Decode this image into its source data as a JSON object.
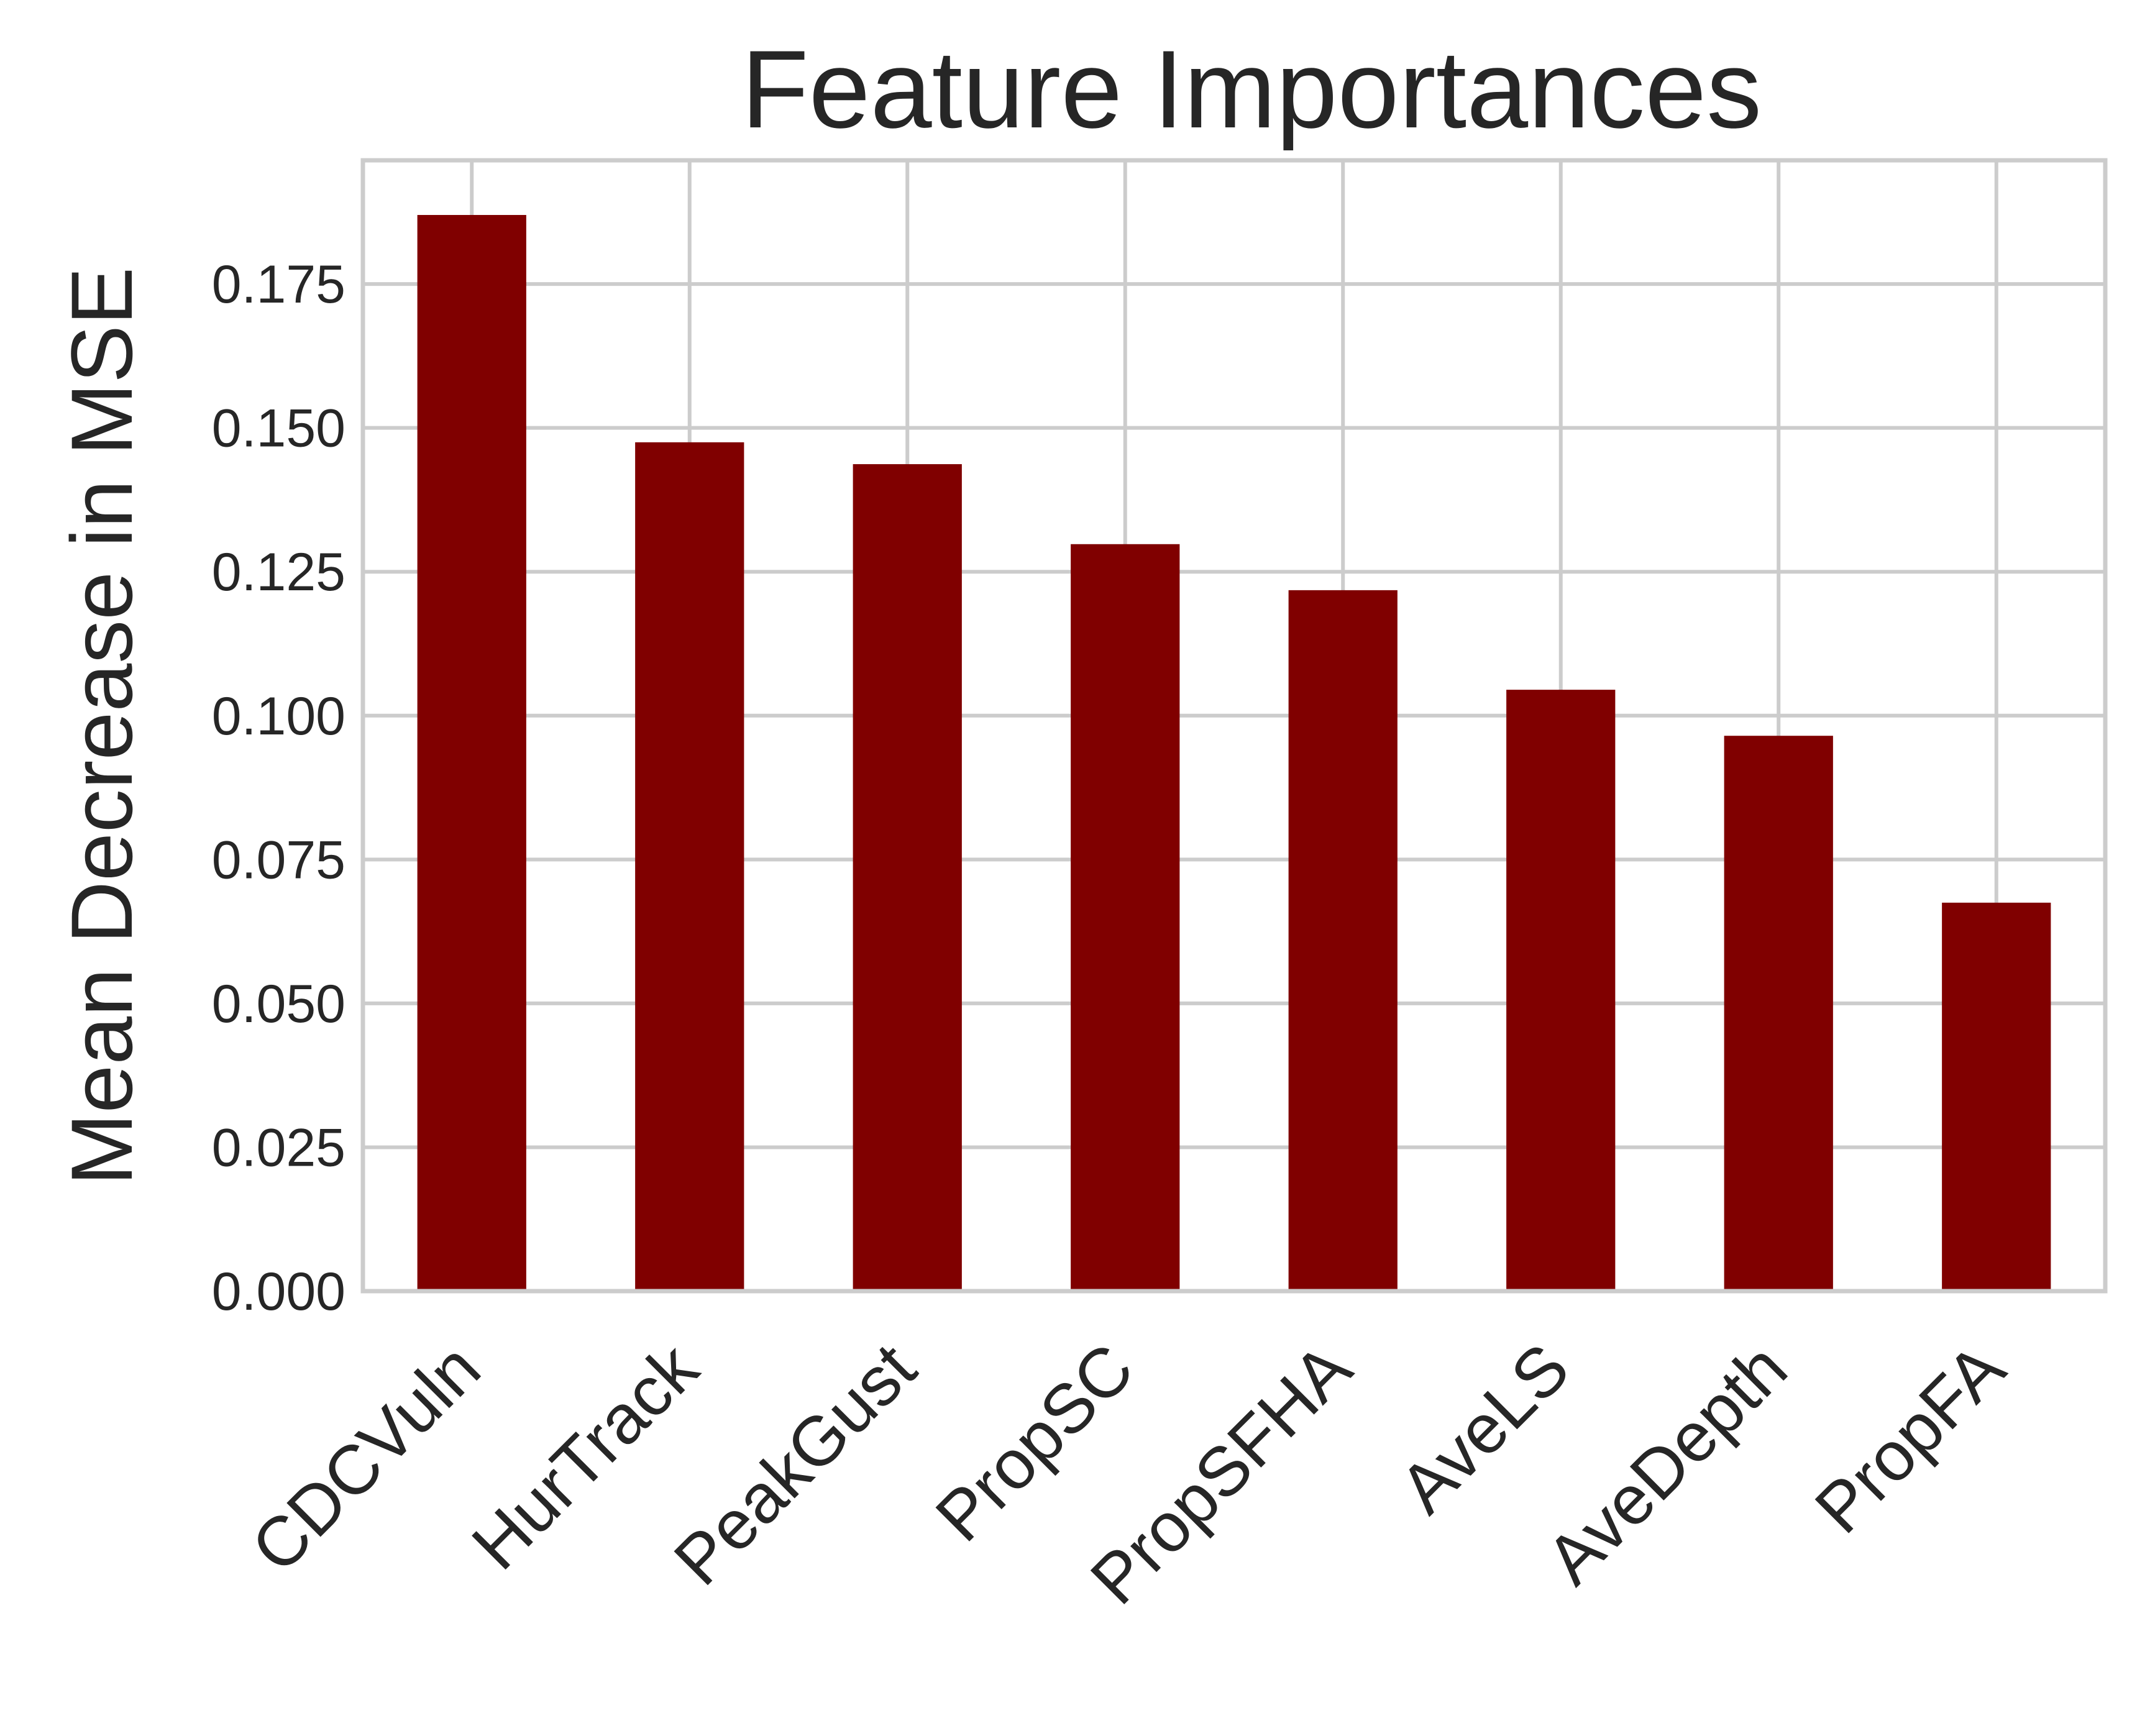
{
  "chart_data": {
    "type": "bar",
    "title": "Feature Importances",
    "xlabel": "",
    "ylabel": "Mean Decrease in MSE",
    "categories": [
      "CDCVuln",
      "HurTrack",
      "PeakGust",
      "PropSC",
      "PropSFHA",
      "AveLS",
      "AveDepth",
      "PropFA"
    ],
    "values": [
      0.187,
      0.1475,
      0.1437,
      0.1298,
      0.1218,
      0.1045,
      0.0965,
      0.0675
    ],
    "yticks": [
      "0.000",
      "0.025",
      "0.050",
      "0.075",
      "0.100",
      "0.125",
      "0.150",
      "0.175"
    ],
    "ytick_values": [
      0,
      0.025,
      0.05,
      0.075,
      0.1,
      0.125,
      0.15,
      0.175
    ],
    "ylim": [
      0,
      0.1965
    ],
    "grid": true,
    "bar_color": "#800000",
    "grid_color": "#cccccc",
    "text_color": "#262626"
  }
}
